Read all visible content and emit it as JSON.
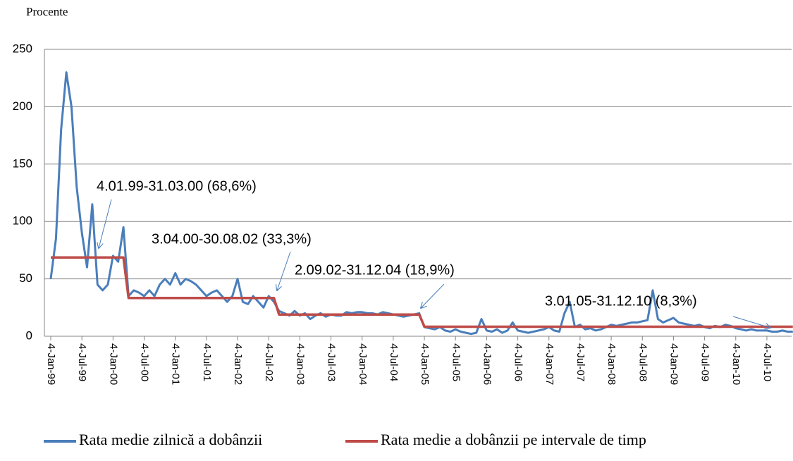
{
  "chart_data": {
    "type": "line",
    "ylabel": "Procente",
    "ylim": [
      0,
      250
    ],
    "yticks": [
      0,
      50,
      100,
      150,
      200,
      250
    ],
    "grid": true,
    "x": [
      "4-Jan-99",
      "4-Feb-99",
      "4-Mar-99",
      "4-Apr-99",
      "4-May-99",
      "4-Jun-99",
      "4-Jul-99",
      "4-Aug-99",
      "4-Sep-99",
      "4-Oct-99",
      "4-Nov-99",
      "4-Dec-99",
      "4-Jan-00",
      "4-Feb-00",
      "4-Mar-00",
      "4-Apr-00",
      "4-May-00",
      "4-Jun-00",
      "4-Jul-00",
      "4-Aug-00",
      "4-Sep-00",
      "4-Oct-00",
      "4-Nov-00",
      "4-Dec-00",
      "4-Jan-01",
      "4-Feb-01",
      "4-Mar-01",
      "4-Apr-01",
      "4-May-01",
      "4-Jun-01",
      "4-Jul-01",
      "4-Aug-01",
      "4-Sep-01",
      "4-Oct-01",
      "4-Nov-01",
      "4-Dec-01",
      "4-Jan-02",
      "4-Feb-02",
      "4-Mar-02",
      "4-Apr-02",
      "4-May-02",
      "4-Jun-02",
      "4-Jul-02",
      "4-Aug-02",
      "4-Sep-02",
      "4-Oct-02",
      "4-Nov-02",
      "4-Dec-02",
      "4-Jan-03",
      "4-Feb-03",
      "4-Mar-03",
      "4-Apr-03",
      "4-May-03",
      "4-Jun-03",
      "4-Jul-03",
      "4-Aug-03",
      "4-Sep-03",
      "4-Oct-03",
      "4-Nov-03",
      "4-Dec-03",
      "4-Jan-04",
      "4-Feb-04",
      "4-Mar-04",
      "4-Apr-04",
      "4-May-04",
      "4-Jun-04",
      "4-Jul-04",
      "4-Aug-04",
      "4-Sep-04",
      "4-Oct-04",
      "4-Nov-04",
      "4-Dec-04",
      "4-Jan-05",
      "4-Feb-05",
      "4-Mar-05",
      "4-Apr-05",
      "4-May-05",
      "4-Jun-05",
      "4-Jul-05",
      "4-Aug-05",
      "4-Sep-05",
      "4-Oct-05",
      "4-Nov-05",
      "4-Dec-05",
      "4-Jan-06",
      "4-Feb-06",
      "4-Mar-06",
      "4-Apr-06",
      "4-May-06",
      "4-Jun-06",
      "4-Jul-06",
      "4-Aug-06",
      "4-Sep-06",
      "4-Oct-06",
      "4-Nov-06",
      "4-Dec-06",
      "4-Jan-07",
      "4-Feb-07",
      "4-Mar-07",
      "4-Apr-07",
      "4-May-07",
      "4-Jun-07",
      "4-Jul-07",
      "4-Aug-07",
      "4-Sep-07",
      "4-Oct-07",
      "4-Nov-07",
      "4-Dec-07",
      "4-Jan-08",
      "4-Feb-08",
      "4-Mar-08",
      "4-Apr-08",
      "4-May-08",
      "4-Jun-08",
      "4-Jul-08",
      "4-Aug-08",
      "4-Sep-08",
      "4-Oct-08",
      "4-Nov-08",
      "4-Dec-08",
      "4-Jan-09",
      "4-Feb-09",
      "4-Mar-09",
      "4-Apr-09",
      "4-May-09",
      "4-Jun-09",
      "4-Jul-09",
      "4-Aug-09",
      "4-Sep-09",
      "4-Oct-09",
      "4-Nov-09",
      "4-Dec-09",
      "4-Jan-10",
      "4-Feb-10",
      "4-Mar-10",
      "4-Apr-10",
      "4-May-10",
      "4-Jun-10",
      "4-Jul-10",
      "4-Aug-10",
      "4-Sep-10",
      "4-Oct-10",
      "4-Nov-10",
      "4-Dec-10"
    ],
    "xticks": [
      "4-Jan-99",
      "4-Jul-99",
      "4-Jan-00",
      "4-Jul-00",
      "4-Jan-01",
      "4-Jul-01",
      "4-Jan-02",
      "4-Jul-02",
      "4-Jan-03",
      "4-Jul-03",
      "4-Jan-04",
      "4-Jul-04",
      "4-Jan-05",
      "4-Jul-05",
      "4-Jan-06",
      "4-Jul-06",
      "4-Jan-07",
      "4-Jul-07",
      "4-Jan-08",
      "4-Jul-08",
      "4-Jan-09",
      "4-Jul-09",
      "4-Jan-10",
      "4-Jul-10"
    ],
    "series": [
      {
        "name": "Rata medie zilnică a dobânzii",
        "color": "#4a7ebb",
        "values": [
          50,
          85,
          180,
          230,
          200,
          130,
          90,
          60,
          115,
          45,
          40,
          45,
          70,
          65,
          95,
          35,
          40,
          38,
          35,
          40,
          35,
          45,
          50,
          45,
          55,
          45,
          50,
          48,
          45,
          40,
          35,
          38,
          40,
          35,
          30,
          35,
          50,
          30,
          28,
          35,
          30,
          25,
          35,
          30,
          22,
          20,
          18,
          22,
          18,
          20,
          15,
          18,
          20,
          17,
          19,
          18,
          18,
          21,
          20,
          21,
          21,
          20,
          20,
          19,
          21,
          20,
          19,
          18,
          17,
          18,
          19,
          20,
          8,
          7,
          6,
          8,
          5,
          4,
          6,
          4,
          3,
          2,
          3,
          15,
          5,
          4,
          6,
          3,
          5,
          12,
          5,
          4,
          3,
          4,
          5,
          6,
          8,
          5,
          4,
          20,
          30,
          8,
          10,
          6,
          7,
          5,
          6,
          8,
          10,
          9,
          10,
          11,
          12,
          12,
          13,
          14,
          40,
          15,
          12,
          14,
          16,
          12,
          11,
          10,
          9,
          10,
          8,
          7,
          9,
          8,
          10,
          9,
          7,
          6,
          5,
          6,
          5,
          5,
          5,
          4,
          4,
          5,
          4,
          4
        ]
      },
      {
        "name": "Rata medie a dobânzii pe intervale de timp",
        "color": "#be4b48",
        "values": [
          68.6,
          68.6,
          68.6,
          68.6,
          68.6,
          68.6,
          68.6,
          68.6,
          68.6,
          68.6,
          68.6,
          68.6,
          68.6,
          68.6,
          68.6,
          33.3,
          33.3,
          33.3,
          33.3,
          33.3,
          33.3,
          33.3,
          33.3,
          33.3,
          33.3,
          33.3,
          33.3,
          33.3,
          33.3,
          33.3,
          33.3,
          33.3,
          33.3,
          33.3,
          33.3,
          33.3,
          33.3,
          33.3,
          33.3,
          33.3,
          33.3,
          33.3,
          33.3,
          33.3,
          18.9,
          18.9,
          18.9,
          18.9,
          18.9,
          18.9,
          18.9,
          18.9,
          18.9,
          18.9,
          18.9,
          18.9,
          18.9,
          18.9,
          18.9,
          18.9,
          18.9,
          18.9,
          18.9,
          18.9,
          18.9,
          18.9,
          18.9,
          18.9,
          18.9,
          18.9,
          18.9,
          18.9,
          8.3,
          8.3,
          8.3,
          8.3,
          8.3,
          8.3,
          8.3,
          8.3,
          8.3,
          8.3,
          8.3,
          8.3,
          8.3,
          8.3,
          8.3,
          8.3,
          8.3,
          8.3,
          8.3,
          8.3,
          8.3,
          8.3,
          8.3,
          8.3,
          8.3,
          8.3,
          8.3,
          8.3,
          8.3,
          8.3,
          8.3,
          8.3,
          8.3,
          8.3,
          8.3,
          8.3,
          8.3,
          8.3,
          8.3,
          8.3,
          8.3,
          8.3,
          8.3,
          8.3,
          8.3,
          8.3,
          8.3,
          8.3,
          8.3,
          8.3,
          8.3,
          8.3,
          8.3,
          8.3,
          8.3,
          8.3,
          8.3,
          8.3,
          8.3,
          8.3,
          8.3,
          8.3,
          8.3,
          8.3,
          8.3,
          8.3,
          8.3,
          8.3,
          8.3,
          8.3,
          8.3,
          8.3
        ]
      }
    ],
    "annotations": [
      "4.01.99-31.03.00 (68,6%)",
      "3.04.00-30.08.02 (33,3%)",
      "2.09.02-31.12.04 (18,9%)",
      "3.01.05-31.12.10 (8,3%)"
    ]
  }
}
